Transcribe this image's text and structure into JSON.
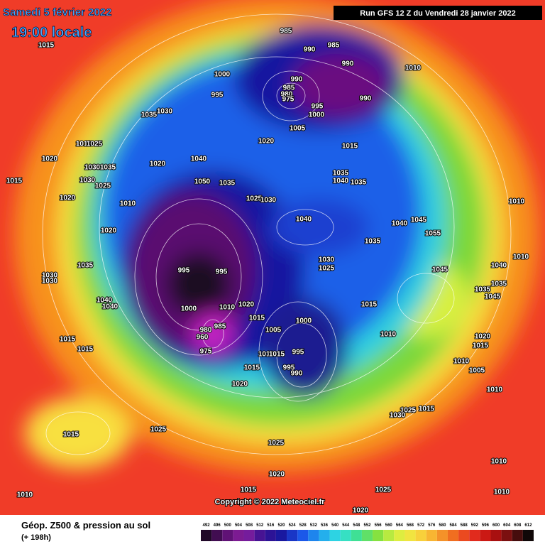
{
  "header": {
    "date": "Samedi 5 février 2022",
    "time": "19:00 locale",
    "run": "Run GFS 12 Z du Vendredi 28 janvier 2022"
  },
  "copyright": "Copyright © 2022 Meteociel.fr",
  "legend": {
    "title": "Géop. Z500 & pression au sol",
    "lead": "(+ 198h)",
    "scale": [
      492,
      496,
      500,
      504,
      508,
      512,
      516,
      520,
      524,
      528,
      532,
      536,
      540,
      544,
      548,
      552,
      556,
      560,
      564,
      568,
      572,
      576,
      580,
      584,
      588,
      592,
      596,
      600,
      604,
      608,
      612
    ]
  },
  "isobar_labels": [
    1015,
    1035,
    1030,
    1010,
    1025,
    1020,
    1015,
    1030,
    1035,
    1020,
    1030,
    1025,
    1010,
    1020,
    1035,
    1030,
    1030,
    1040,
    1040,
    1015,
    1015,
    1015,
    1025,
    1010,
    985,
    990,
    985,
    990,
    1010,
    1000,
    995,
    990,
    985,
    980,
    975,
    995,
    1000,
    990,
    1005,
    1020,
    1015,
    1040,
    1020,
    1050,
    1035,
    1025,
    1030,
    1035,
    1040,
    1035,
    1040,
    1040,
    1045,
    1055,
    1035,
    1030,
    1025,
    995,
    995,
    1000,
    1010,
    1020,
    1015,
    1005,
    1000,
    980,
    985,
    960,
    975,
    995,
    995,
    990,
    1010,
    1015,
    1015,
    1020,
    1015,
    1010,
    1045,
    1040,
    1035,
    1035,
    1045,
    1020,
    1015,
    1010,
    1005,
    1010,
    1010,
    1010,
    1025,
    1015,
    1030,
    1025,
    1020,
    1015,
    1025,
    1020,
    1010,
    1010
  ]
}
